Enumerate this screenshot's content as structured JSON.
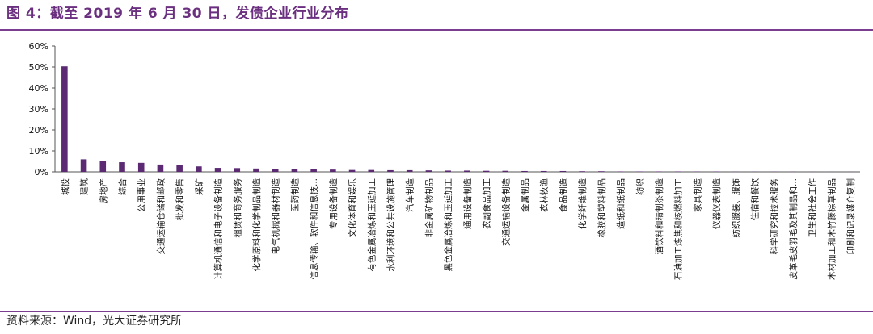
{
  "title": "图 4：截至 2019 年 6 月 30 日，发债企业行业分布",
  "source": "资料来源：Wind，光大证券研究所",
  "colors": {
    "bar": "#5b2a73",
    "accent": "#7a3d8f"
  },
  "chart_data": {
    "type": "bar",
    "ylim": [
      0,
      60
    ],
    "yticks": [
      "0%",
      "10%",
      "20%",
      "30%",
      "40%",
      "50%",
      "60%"
    ],
    "grid": false,
    "categories": [
      "城投",
      "建筑",
      "房地产",
      "综合",
      "公用事业",
      "交通运输仓储和邮政",
      "批发和零售",
      "采矿",
      "计算机通信和电子设备制造",
      "租赁和商务服务",
      "化学原料和化学制品制造",
      "电气机械和器材制造",
      "医药制造",
      "信息传输、软件和信息技...",
      "专用设备制造",
      "文化体育和娱乐",
      "有色金属冶炼和压延加工",
      "水利环境和公共设施管理",
      "汽车制造",
      "非金属矿物制品",
      "黑色金属冶炼和压延加工",
      "通用设备制造",
      "农副食品加工",
      "交通运输设备制造",
      "金属制品",
      "农林牧渔",
      "食品制造",
      "化学纤维制造",
      "橡胶和塑料制品",
      "造纸和纸制品",
      "纺织",
      "酒饮料和精制茶制造",
      "石油加工炼焦和核燃料加工",
      "家具制造",
      "仪器仪表制造",
      "纺织服装、服饰",
      "住宿和餐饮",
      "科学研究和技术服务",
      "皮革毛皮羽毛及其制品和...",
      "卫生和社会工作",
      "木材加工和木竹藤棕草制品",
      "印刷和记录媒介复制"
    ],
    "values": [
      50.3,
      6.0,
      5.1,
      4.6,
      4.3,
      3.5,
      3.1,
      2.6,
      1.9,
      1.8,
      1.6,
      1.4,
      1.3,
      1.2,
      1.1,
      0.9,
      0.9,
      0.8,
      0.8,
      0.7,
      0.6,
      0.6,
      0.5,
      0.5,
      0.4,
      0.4,
      0.4,
      0.3,
      0.3,
      0.2,
      0.2,
      0.2,
      0.2,
      0.15,
      0.15,
      0.1,
      0.1,
      0.1,
      0.1,
      0.05,
      0.05,
      0.05
    ]
  }
}
